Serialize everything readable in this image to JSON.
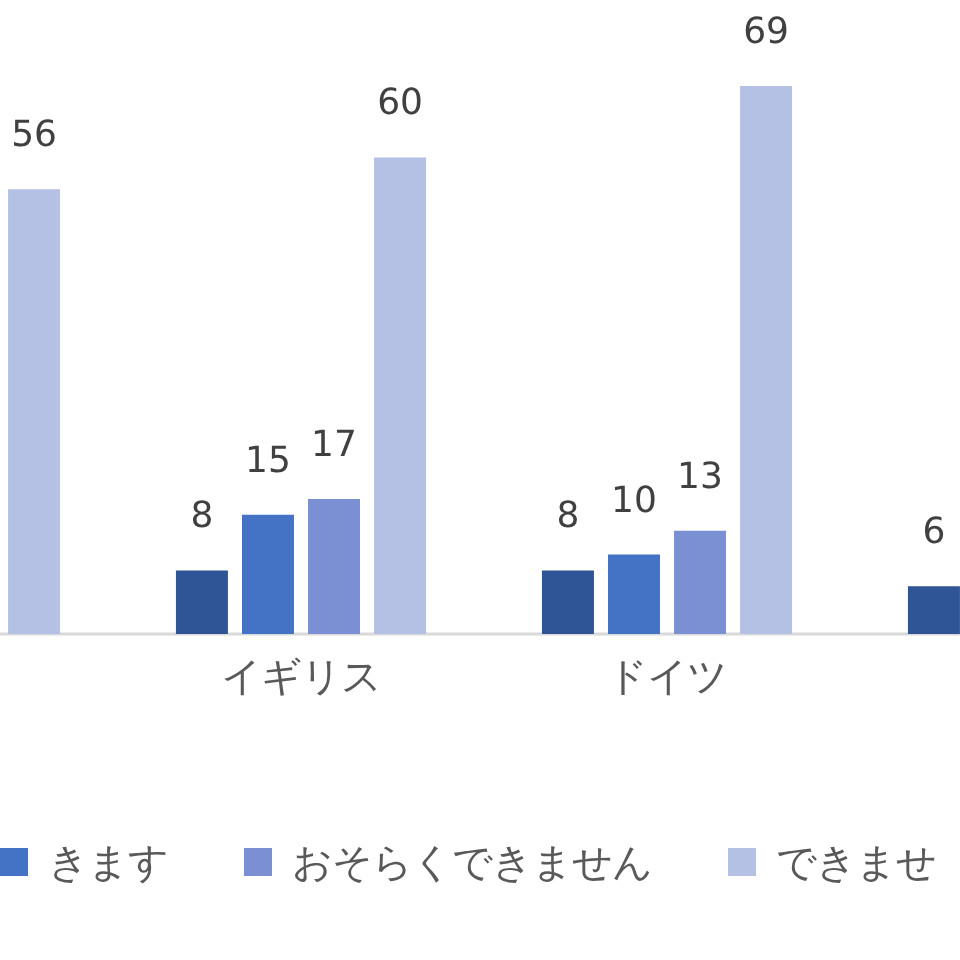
{
  "chart_data": {
    "type": "bar",
    "categories": [
      null,
      "イギリス",
      "ドイツ",
      null
    ],
    "series": [
      {
        "color": "#2f5597",
        "values": [
          null,
          8,
          8,
          6
        ]
      },
      {
        "name": "きます",
        "color": "#4472c4",
        "values": [
          null,
          15,
          10,
          null
        ]
      },
      {
        "name": "おそらくできません",
        "color": "#7b90d2",
        "values": [
          null,
          17,
          13,
          null
        ]
      },
      {
        "name": "できませ",
        "color": "#b4c0e4",
        "values": [
          56,
          60,
          69,
          null
        ]
      }
    ],
    "data_labels": true,
    "legend": "bottom",
    "tick_labels": "x"
  }
}
